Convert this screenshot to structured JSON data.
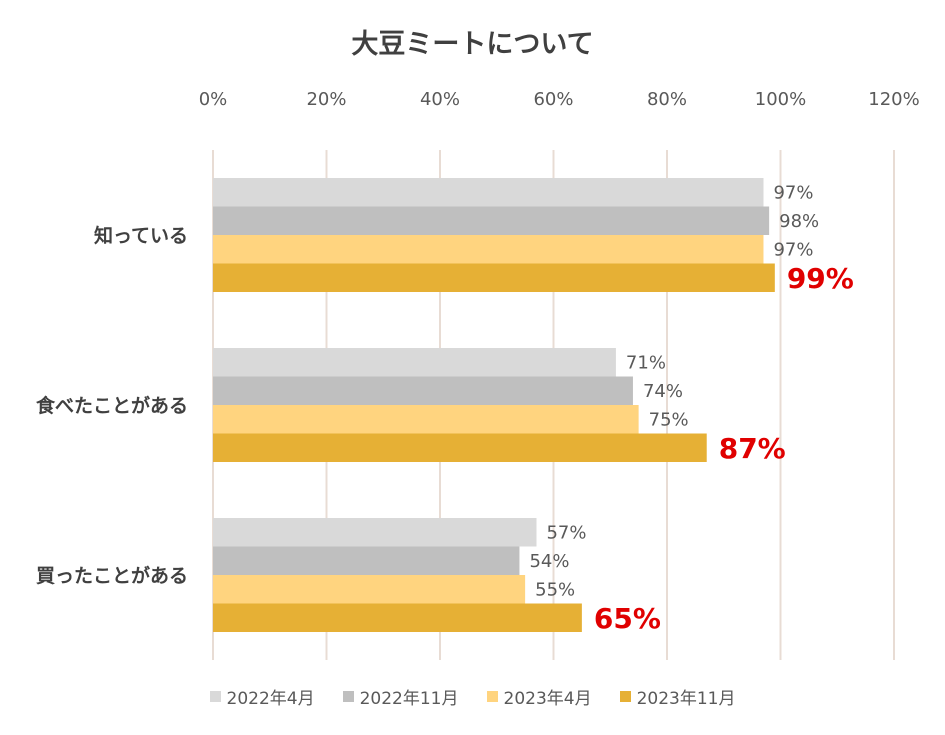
{
  "chart_data": {
    "type": "bar",
    "orientation": "horizontal",
    "title": "大豆ミートについて",
    "categories": [
      "知っている",
      "食べたことがある",
      "買ったことがある"
    ],
    "series": [
      {
        "name": "2022年4月",
        "values": [
          97,
          71,
          57
        ],
        "labels": [
          "97%",
          "71%",
          "57%"
        ],
        "color": "#d9d9d9"
      },
      {
        "name": "2022年11月",
        "values": [
          98,
          74,
          54
        ],
        "labels": [
          "98%",
          "74%",
          "54%"
        ],
        "color": "#bfbfbf"
      },
      {
        "name": "2023年4月",
        "values": [
          97,
          75,
          55
        ],
        "labels": [
          "97%",
          "75%",
          "55%"
        ],
        "color": "#ffd47f"
      },
      {
        "name": "2023年11月",
        "values": [
          99,
          87,
          65
        ],
        "labels": [
          "99%",
          "87%",
          "65%"
        ],
        "color": "#e6b035",
        "label_color": "#e00000"
      }
    ],
    "xlim": [
      0,
      120
    ],
    "xticks": [
      "0%",
      "20%",
      "40%",
      "60%",
      "80%",
      "100%",
      "120%"
    ],
    "grid": true,
    "legend_position": "bottom",
    "axis_position": "top"
  }
}
